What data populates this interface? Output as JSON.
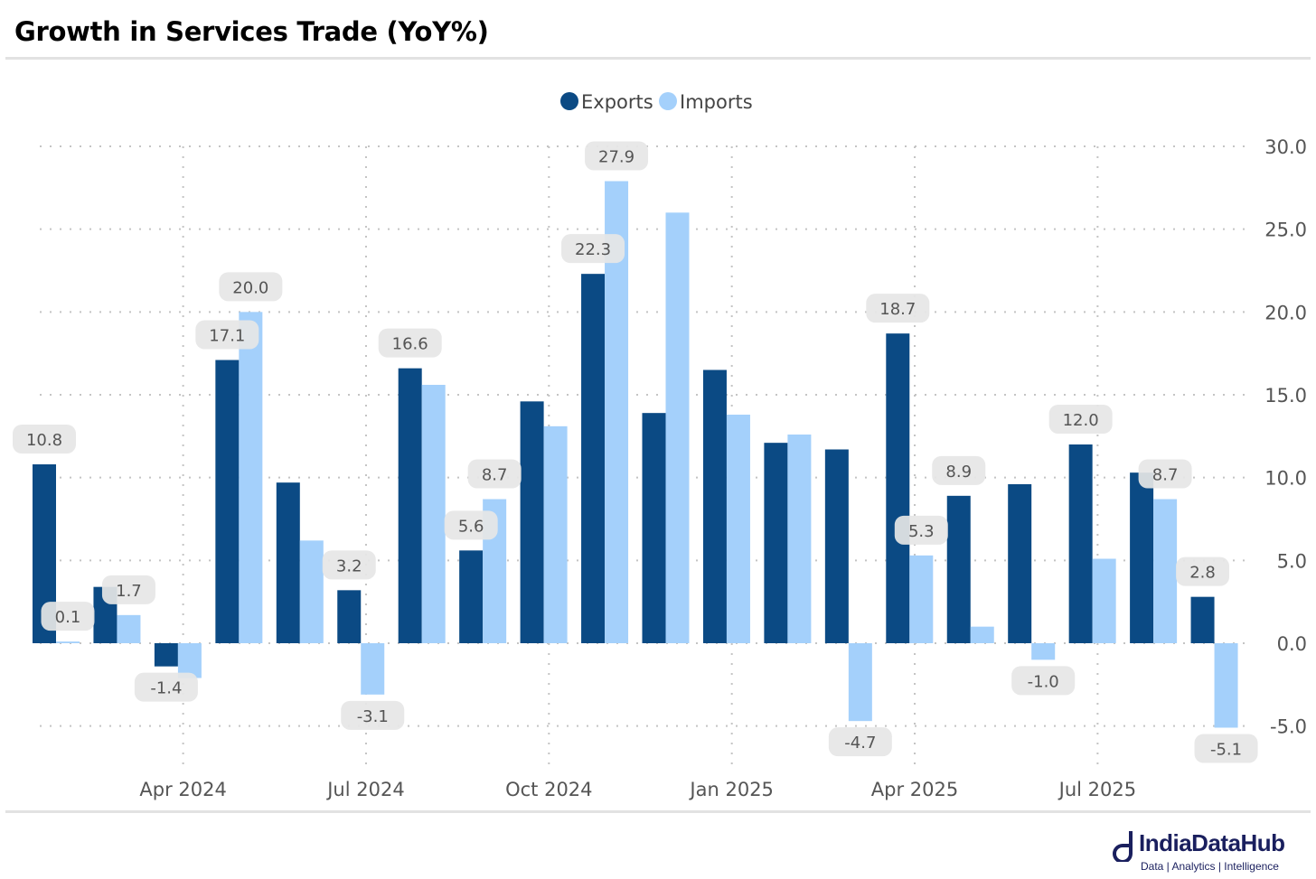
{
  "title": "Growth in Services Trade (YoY%)",
  "colors": {
    "exports": "#0b4a84",
    "imports": "#a4d0fb",
    "label_bg": "#e6e6e6",
    "grid": "#c4c4c4"
  },
  "brand": {
    "name": "IndiaDataHub",
    "tagline": "Data | Analytics | Intelligence"
  },
  "chart_data": {
    "type": "bar",
    "title": "Growth in Services Trade (YoY%)",
    "legend": {
      "position": "top-center",
      "entries": [
        "Exports",
        "Imports"
      ]
    },
    "categories": [
      "Feb 2024",
      "Mar 2024",
      "Apr 2024",
      "May 2024",
      "Jun 2024",
      "Jul 2024",
      "Aug 2024",
      "Sep 2024",
      "Oct 2024",
      "Nov 2024",
      "Dec 2024",
      "Jan 2025",
      "Feb 2025",
      "Mar 2025",
      "Apr 2025",
      "May 2025",
      "Jun 2025",
      "Jul 2025",
      "Aug 2025",
      "Sep 2025"
    ],
    "series": [
      {
        "name": "Exports",
        "values": [
          10.8,
          3.4,
          -1.4,
          17.1,
          9.7,
          3.2,
          16.6,
          5.6,
          14.6,
          22.3,
          13.9,
          16.5,
          12.1,
          11.7,
          18.7,
          8.9,
          9.6,
          12.0,
          10.3,
          2.8
        ]
      },
      {
        "name": "Imports",
        "values": [
          0.1,
          1.7,
          -2.1,
          20.0,
          6.2,
          -3.1,
          15.6,
          8.7,
          13.1,
          27.9,
          26.0,
          13.8,
          12.6,
          -4.7,
          5.3,
          1.0,
          -1.0,
          5.1,
          8.7,
          -5.1
        ]
      }
    ],
    "data_labels": [
      {
        "series": "Exports",
        "category": "Feb 2024",
        "text": "10.8"
      },
      {
        "series": "Imports",
        "category": "Feb 2024",
        "text": "0.1"
      },
      {
        "series": "Imports",
        "category": "Mar 2024",
        "text": "1.7"
      },
      {
        "series": "Exports",
        "category": "Apr 2024",
        "text": "-1.4"
      },
      {
        "series": "Exports",
        "category": "May 2024",
        "text": "17.1"
      },
      {
        "series": "Imports",
        "category": "May 2024",
        "text": "20.0"
      },
      {
        "series": "Exports",
        "category": "Jul 2024",
        "text": "3.2"
      },
      {
        "series": "Imports",
        "category": "Jul 2024",
        "text": "-3.1"
      },
      {
        "series": "Exports",
        "category": "Aug 2024",
        "text": "16.6"
      },
      {
        "series": "Exports",
        "category": "Sep 2024",
        "text": "5.6"
      },
      {
        "series": "Imports",
        "category": "Sep 2024",
        "text": "8.7"
      },
      {
        "series": "Exports",
        "category": "Nov 2024",
        "text": "22.3"
      },
      {
        "series": "Imports",
        "category": "Nov 2024",
        "text": "27.9"
      },
      {
        "series": "Imports",
        "category": "Mar 2025",
        "text": "-4.7"
      },
      {
        "series": "Exports",
        "category": "Apr 2025",
        "text": "18.7"
      },
      {
        "series": "Imports",
        "category": "Apr 2025",
        "text": "5.3"
      },
      {
        "series": "Exports",
        "category": "May 2025",
        "text": "8.9"
      },
      {
        "series": "Imports",
        "category": "Jun 2025",
        "text": "-1.0"
      },
      {
        "series": "Exports",
        "category": "Jul 2025",
        "text": "12.0"
      },
      {
        "series": "Imports",
        "category": "Aug 2025",
        "text": "8.7"
      },
      {
        "series": "Exports",
        "category": "Sep 2025",
        "text": "2.8"
      },
      {
        "series": "Imports",
        "category": "Sep 2025",
        "text": "-5.1"
      }
    ],
    "x_ticks": [
      "Apr 2024",
      "Jul 2024",
      "Oct 2024",
      "Jan 2025",
      "Apr 2025",
      "Jul 2025"
    ],
    "y_ticks": [
      "30.0",
      "25.0",
      "20.0",
      "15.0",
      "10.0",
      "5.0",
      "0.0",
      "-5.0"
    ],
    "y_tick_values": [
      30,
      25,
      20,
      15,
      10,
      5,
      0,
      -5
    ],
    "ylim": [
      -7.4,
      30
    ],
    "y_axis_side": "right",
    "grid": true,
    "xlabel": "",
    "ylabel": ""
  }
}
